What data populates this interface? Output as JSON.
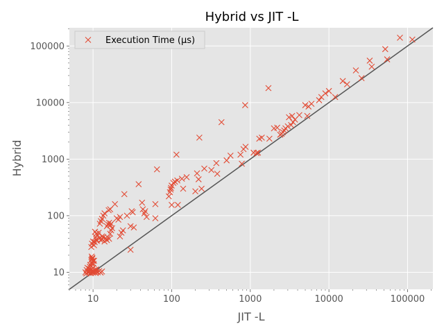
{
  "chart_data": {
    "type": "scatter",
    "title": "Hybrid vs JIT -L",
    "xlabel": "JIT -L",
    "ylabel": "Hybrid",
    "xscale": "log",
    "yscale": "log",
    "xlim": [
      5,
      210000
    ],
    "ylim": [
      5,
      210000
    ],
    "xticks": [
      10,
      100,
      1000,
      10000,
      100000
    ],
    "yticks": [
      10,
      100,
      1000,
      10000,
      100000
    ],
    "xtick_labels": [
      "10",
      "100",
      "1000",
      "10000",
      "100000"
    ],
    "ytick_labels": [
      "10",
      "100",
      "1000",
      "10000",
      "100000"
    ],
    "grid": true,
    "legend_position": "top-left",
    "reference_line": "y = x",
    "colors": {
      "background": "#e5e5e5",
      "grid": "#ffffff",
      "marker": "#e24a33",
      "reference_line": "#555555"
    },
    "series": [
      {
        "name": "Execution Time (µs)",
        "marker": "x",
        "points": [
          [
            8,
            10
          ],
          [
            8.2,
            9.5
          ],
          [
            8.3,
            11
          ],
          [
            8.5,
            12
          ],
          [
            8.6,
            10.3
          ],
          [
            8.8,
            9.8
          ],
          [
            9,
            10.5
          ],
          [
            9,
            11.5
          ],
          [
            9.1,
            12.5
          ],
          [
            9.2,
            13.5
          ],
          [
            9.3,
            9.6
          ],
          [
            9.5,
            10.2
          ],
          [
            9.5,
            11
          ],
          [
            9.6,
            15
          ],
          [
            9.7,
            17
          ],
          [
            9.8,
            18
          ],
          [
            10,
            9.8
          ],
          [
            10,
            10.5
          ],
          [
            10,
            12
          ],
          [
            10.2,
            14
          ],
          [
            10.3,
            16
          ],
          [
            10.5,
            10
          ],
          [
            10.5,
            11
          ],
          [
            10.8,
            9.7
          ],
          [
            11,
            10.2
          ],
          [
            11,
            11.2
          ],
          [
            11.5,
            10
          ],
          [
            12,
            10.5
          ],
          [
            12.5,
            9.9
          ],
          [
            13,
            10.3
          ],
          [
            9.5,
            16.5
          ],
          [
            9.8,
            17.5
          ],
          [
            9.6,
            19
          ],
          [
            10,
            16
          ],
          [
            9.7,
            14
          ],
          [
            9.5,
            28
          ],
          [
            9.7,
            32
          ],
          [
            10,
            35
          ],
          [
            10.3,
            30
          ],
          [
            10.5,
            34
          ],
          [
            11,
            38
          ],
          [
            10.8,
            42
          ],
          [
            11.2,
            36
          ],
          [
            11.5,
            45
          ],
          [
            12,
            40
          ],
          [
            12.5,
            37
          ],
          [
            13,
            43
          ],
          [
            10.6,
            52
          ],
          [
            11,
            48
          ],
          [
            11.8,
            50
          ],
          [
            12.2,
            72
          ],
          [
            12.6,
            80
          ],
          [
            13,
            88
          ],
          [
            13.5,
            100
          ],
          [
            14,
            110
          ],
          [
            13,
            38
          ],
          [
            13.5,
            42
          ],
          [
            14,
            35
          ],
          [
            14.5,
            40
          ],
          [
            15,
            37
          ],
          [
            15.5,
            41
          ],
          [
            16,
            39
          ],
          [
            16.5,
            48
          ],
          [
            17,
            55
          ],
          [
            17.5,
            60
          ],
          [
            15,
            65
          ],
          [
            15.5,
            70
          ],
          [
            16,
            75
          ],
          [
            16.5,
            68
          ],
          [
            17,
            72
          ],
          [
            15.8,
            125
          ],
          [
            16.5,
            130
          ],
          [
            19,
            160
          ],
          [
            20,
            90
          ],
          [
            21,
            85
          ],
          [
            22,
            95
          ],
          [
            22,
            43
          ],
          [
            23,
            50
          ],
          [
            24,
            55
          ],
          [
            25,
            240
          ],
          [
            27,
            100
          ],
          [
            30,
            25
          ],
          [
            30,
            65
          ],
          [
            31,
            120
          ],
          [
            32,
            115
          ],
          [
            33,
            62
          ],
          [
            38,
            360
          ],
          [
            42,
            170
          ],
          [
            43,
            130
          ],
          [
            45,
            110
          ],
          [
            46,
            120
          ],
          [
            48,
            95
          ],
          [
            62,
            90
          ],
          [
            62,
            160
          ],
          [
            65,
            660
          ],
          [
            92,
            220
          ],
          [
            95,
            260
          ],
          [
            97,
            290
          ],
          [
            98,
            310
          ],
          [
            100,
            340
          ],
          [
            100,
            155
          ],
          [
            105,
            380
          ],
          [
            110,
            400
          ],
          [
            115,
            1200
          ],
          [
            118,
            420
          ],
          [
            120,
            155
          ],
          [
            135,
            450
          ],
          [
            140,
            300
          ],
          [
            155,
            480
          ],
          [
            200,
            270
          ],
          [
            210,
            560
          ],
          [
            220,
            440
          ],
          [
            225,
            2400
          ],
          [
            240,
            300
          ],
          [
            260,
            680
          ],
          [
            320,
            640
          ],
          [
            370,
            850
          ],
          [
            380,
            550
          ],
          [
            430,
            4500
          ],
          [
            500,
            950
          ],
          [
            560,
            1150
          ],
          [
            750,
            1200
          ],
          [
            780,
            830
          ],
          [
            820,
            1500
          ],
          [
            860,
            9000
          ],
          [
            870,
            1650
          ],
          [
            1100,
            1300
          ],
          [
            1200,
            1280
          ],
          [
            1250,
            1300
          ],
          [
            1300,
            2300
          ],
          [
            1400,
            2400
          ],
          [
            1700,
            18000
          ],
          [
            1750,
            2300
          ],
          [
            2000,
            3500
          ],
          [
            2200,
            3600
          ],
          [
            2400,
            2700
          ],
          [
            2500,
            2800
          ],
          [
            2600,
            3000
          ],
          [
            2700,
            3200
          ],
          [
            2800,
            3500
          ],
          [
            3000,
            3800
          ],
          [
            3100,
            5500
          ],
          [
            3300,
            4000
          ],
          [
            3400,
            5800
          ],
          [
            3500,
            4500
          ],
          [
            3700,
            5000
          ],
          [
            4200,
            6000
          ],
          [
            5000,
            9000
          ],
          [
            5300,
            5800
          ],
          [
            5500,
            8500
          ],
          [
            6000,
            9500
          ],
          [
            7500,
            11000
          ],
          [
            8000,
            12500
          ],
          [
            9000,
            14500
          ],
          [
            10000,
            16000
          ],
          [
            12000,
            12500
          ],
          [
            15000,
            24000
          ],
          [
            17000,
            21000
          ],
          [
            22000,
            37000
          ],
          [
            26000,
            27000
          ],
          [
            33000,
            55000
          ],
          [
            35000,
            43000
          ],
          [
            52000,
            88000
          ],
          [
            55000,
            58000
          ],
          [
            80000,
            140000
          ],
          [
            115000,
            130000
          ]
        ]
      }
    ]
  }
}
